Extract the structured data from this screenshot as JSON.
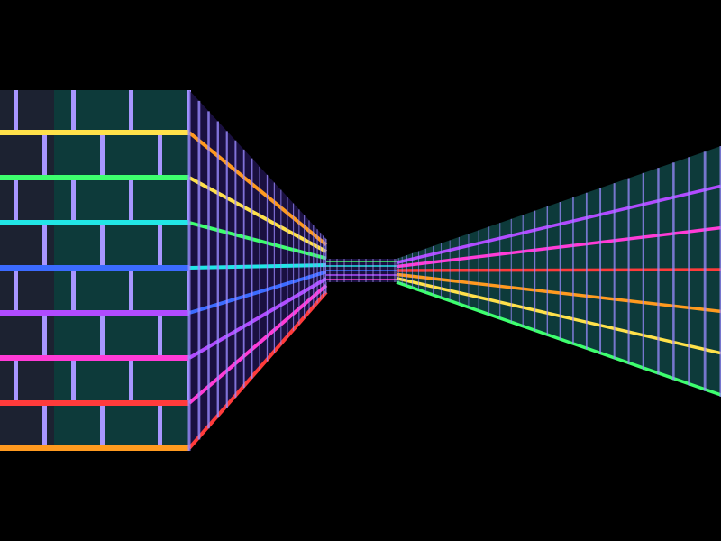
{
  "scene": {
    "kind": "raycaster-corridor",
    "background_color": "#000000",
    "wall_texture": "neon-rainbow-brick",
    "mortar_palette": [
      "#ff3b3b",
      "#ff9a1f",
      "#ffe14a",
      "#3dff6e",
      "#21e6e6",
      "#3b6bff",
      "#b04bff",
      "#ff3bd6"
    ],
    "brick_colors": [
      "#0d3a3a",
      "#1a1040",
      "#2a0e2a"
    ],
    "walls": [
      {
        "name": "left-near-wall-face",
        "orientation": "facing"
      },
      {
        "name": "left-side-wall",
        "orientation": "receding"
      },
      {
        "name": "far-end-wall",
        "orientation": "facing"
      },
      {
        "name": "right-side-wall",
        "orientation": "receding"
      }
    ]
  }
}
